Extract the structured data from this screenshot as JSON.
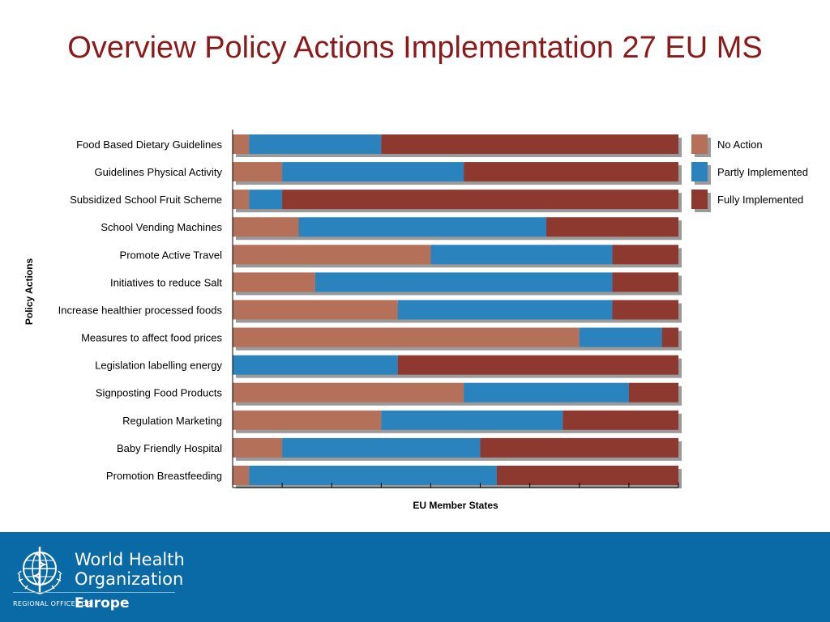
{
  "title": "Overview Policy Actions Implementation 27 EU MS",
  "colors": {
    "no_action": "#b5705a",
    "partly_implemented": "#2b83bd",
    "fully_implemented": "#8e3930",
    "title": "#8b1a1a",
    "footer": "#0a6aa5"
  },
  "chart_data": {
    "type": "bar",
    "orientation": "horizontal",
    "stacked": true,
    "title": "Overview Policy Actions Implementation 27 EU MS",
    "xlabel": "EU Member States",
    "ylabel": "Policy Actions",
    "xlim": [
      0,
      27
    ],
    "x_tick_count": 10,
    "legend_position": "right",
    "categories": [
      "Food Based Dietary Guidelines",
      "Guidelines Physical Activity",
      "Subsidized School Fruit Scheme",
      "School Vending Machines",
      "Promote Active Travel",
      "Initiatives to reduce Salt",
      "Increase healthier processed foods",
      "Measures to affect food prices",
      "Legislation labelling energy",
      "Signposting Food Products",
      "Regulation Marketing",
      "Baby Friendly Hospital",
      "Promotion Breastfeeding"
    ],
    "series": [
      {
        "name": "No Action",
        "color": "#b5705a",
        "values": [
          1,
          3,
          1,
          4,
          12,
          5,
          10,
          21,
          0,
          14,
          9,
          3,
          1
        ]
      },
      {
        "name": "Partly Implemented",
        "color": "#2b83bd",
        "values": [
          8,
          11,
          2,
          15,
          11,
          18,
          13,
          5,
          10,
          10,
          11,
          12,
          15
        ]
      },
      {
        "name": "Fully Implemented",
        "color": "#8e3930",
        "values": [
          18,
          13,
          24,
          8,
          4,
          4,
          4,
          1,
          17,
          3,
          7,
          12,
          11
        ]
      }
    ]
  },
  "footer": {
    "org_line1": "World Health",
    "org_line2": "Organization",
    "regional": "REGIONAL OFFICE FOR",
    "region": "Europe"
  }
}
